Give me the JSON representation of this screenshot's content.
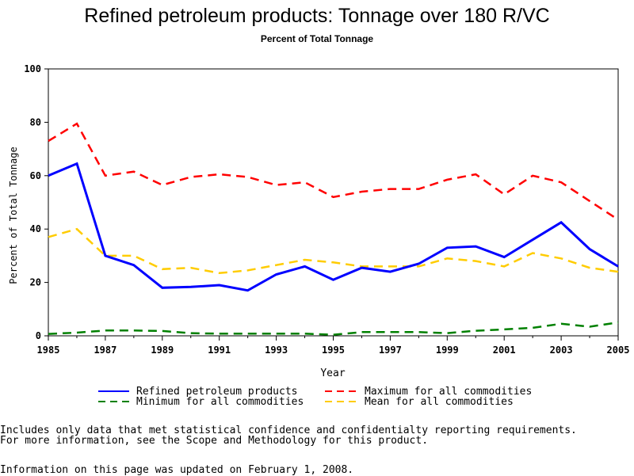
{
  "chart_data": {
    "type": "line",
    "title": "Refined petroleum products: Tonnage over 180 R/VC",
    "subtitle": "Percent of Total Tonnage",
    "xlabel": "Year",
    "ylabel": "Percent of Total Tonnage",
    "xlim": [
      1985,
      2005
    ],
    "ylim": [
      0,
      100
    ],
    "x_ticks": [
      "1985",
      "1987",
      "1989",
      "1991",
      "1993",
      "1995",
      "1997",
      "1999",
      "2001",
      "2003",
      "2005"
    ],
    "y_ticks": [
      "0",
      "20",
      "40",
      "60",
      "80",
      "100"
    ],
    "x": [
      1985,
      1986,
      1987,
      1988,
      1989,
      1990,
      1991,
      1992,
      1993,
      1994,
      1995,
      1996,
      1997,
      1998,
      1999,
      2000,
      2001,
      2002,
      2003,
      2004,
      2005
    ],
    "legend_position": "bottom",
    "grid": false,
    "series": [
      {
        "name": "Refined petroleum products",
        "color": "#0000ff",
        "style": "solid",
        "values": [
          60,
          64.5,
          30,
          26.5,
          18,
          18.3,
          19,
          17,
          23,
          26,
          21,
          25.5,
          24,
          27,
          33,
          33.5,
          29.5,
          36,
          42.5,
          32.5,
          26
        ]
      },
      {
        "name": "Maximum for all commodities",
        "color": "#ff0000",
        "style": "dashed",
        "values": [
          73,
          79.5,
          60,
          61.5,
          56.5,
          59.5,
          60.5,
          59.5,
          56.5,
          57.5,
          52,
          54,
          55,
          55,
          58.5,
          60.5,
          53,
          60,
          57.5,
          50.5,
          43.5
        ]
      },
      {
        "name": "Minimum for all commodities",
        "color": "#008000",
        "style": "dashed",
        "values": [
          0.7,
          1.2,
          2,
          2,
          1.8,
          1,
          0.8,
          0.8,
          0.8,
          0.8,
          0.4,
          1.4,
          1.4,
          1.4,
          1,
          1.9,
          2.4,
          3,
          4.5,
          3.4,
          5
        ]
      },
      {
        "name": "Mean for all commodities",
        "color": "#ffcc00",
        "style": "dashed",
        "values": [
          37,
          40,
          30,
          30,
          25,
          25.5,
          23.5,
          24.5,
          26.5,
          28.5,
          27.5,
          26,
          26,
          26,
          29,
          28,
          26,
          31,
          29,
          25.5,
          24
        ]
      }
    ]
  },
  "notes": {
    "line1": "Includes only data that met statistical confidence and confidentialty reporting requirements.",
    "line2": "For more information, see the Scope and Methodology for this product.",
    "updated": "Information on this page was updated on February 1, 2008."
  }
}
